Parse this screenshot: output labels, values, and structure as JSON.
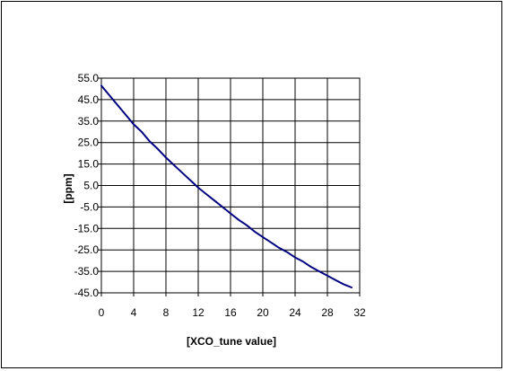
{
  "chart_data": {
    "type": "line",
    "title": "",
    "xlabel": "[XCO_tune value]",
    "ylabel": "[ppm]",
    "xlim": [
      0,
      32
    ],
    "ylim": [
      -45,
      55
    ],
    "x_ticks": [
      0,
      4,
      8,
      12,
      16,
      20,
      24,
      28,
      32
    ],
    "y_ticks": [
      55,
      45,
      35,
      25,
      15,
      5,
      -5,
      -15,
      -25,
      -35,
      -45
    ],
    "x_tick_labels": [
      "0",
      "4",
      "8",
      "12",
      "16",
      "20",
      "24",
      "28",
      "32"
    ],
    "y_tick_labels": [
      "55.0",
      "45.0",
      "35.0",
      "25.0",
      "15.0",
      "5.0",
      "-5.0",
      "-15.0",
      "-25.0",
      "-35.0",
      "-45.0"
    ],
    "grid": true,
    "legend": "none",
    "colors": {
      "line": "#000080",
      "grid": "#000000",
      "background": "#ffffff"
    },
    "series": [
      {
        "x": [
          0,
          1,
          2,
          3,
          4,
          5,
          6,
          7,
          8,
          9,
          10,
          11,
          12,
          13,
          14,
          15,
          16,
          17,
          18,
          19,
          20,
          21,
          22,
          23,
          24,
          25,
          26,
          27,
          28,
          29,
          30,
          31
        ],
        "y": [
          51.5,
          47.0,
          42.5,
          38.0,
          33.5,
          30.0,
          25.5,
          22.0,
          18.0,
          14.5,
          11.0,
          7.5,
          4.0,
          1.0,
          -2.0,
          -5.0,
          -8.0,
          -11.0,
          -13.5,
          -16.5,
          -19.0,
          -21.5,
          -24.0,
          -26.0,
          -28.5,
          -30.5,
          -33.0,
          -35.0,
          -37.0,
          -39.0,
          -41.0,
          -42.5
        ]
      }
    ]
  }
}
